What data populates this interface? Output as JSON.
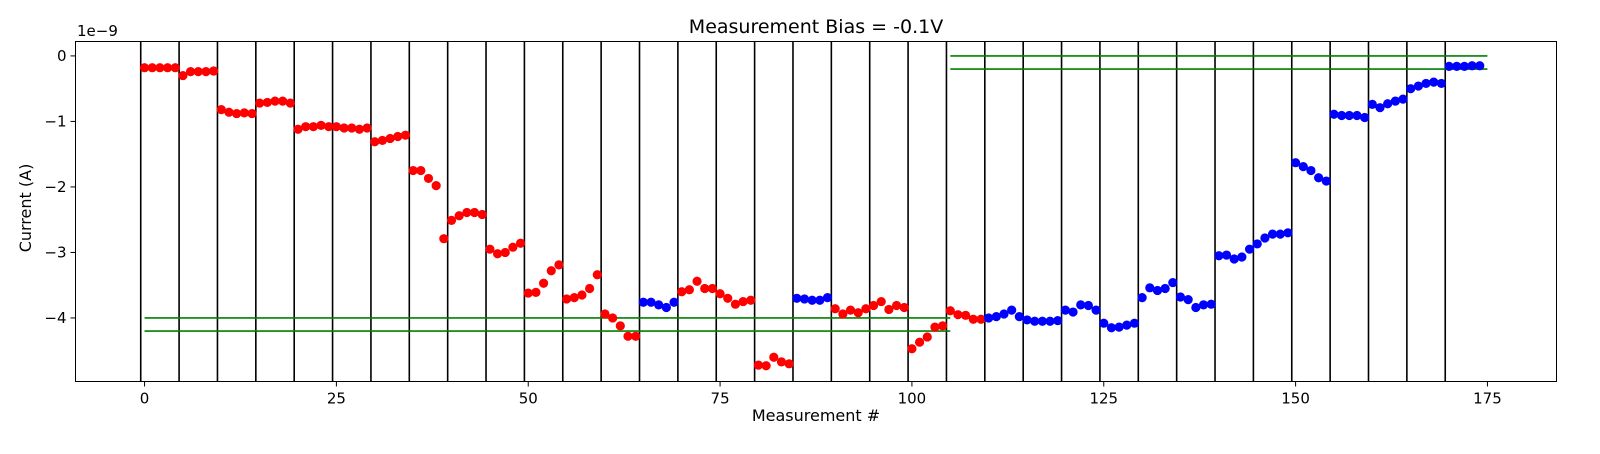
{
  "chart_data": {
    "type": "scatter",
    "title": "Measurement Bias = -0.1V",
    "xlabel": "Measurement #",
    "ylabel": "Current (A)",
    "y_offset_label": "1e−9",
    "xlim": [
      -9,
      184
    ],
    "ylim": [
      -4.97,
      0.22
    ],
    "y_scale_factor": 1e-09,
    "grid": false,
    "x_ticks": [
      0,
      25,
      50,
      75,
      100,
      125,
      150,
      175
    ],
    "x_tick_labels": [
      "0",
      "25",
      "50",
      "75",
      "100",
      "125",
      "150",
      "175"
    ],
    "y_ticks": [
      0,
      -1,
      -2,
      -3,
      -4
    ],
    "y_tick_labels": [
      "0",
      "−1",
      "−2",
      "−3",
      "−4"
    ],
    "vertical_lines_x": [
      -0.5,
      4.5,
      9.5,
      14.5,
      19.5,
      24.5,
      29.5,
      34.5,
      39.5,
      44.5,
      49.5,
      54.5,
      59.5,
      64.5,
      69.5,
      74.5,
      79.5,
      84.5,
      89.5,
      94.5,
      99.5,
      104.5,
      109.5,
      114.5,
      119.5,
      124.5,
      129.5,
      134.5,
      139.5,
      144.5,
      149.5,
      154.5,
      159.5,
      164.5,
      169.5
    ],
    "vertical_line_color": "#000000",
    "reference_lines": [
      {
        "x": [
          105,
          175
        ],
        "y": 0.0,
        "color": "#008000"
      },
      {
        "x": [
          105,
          175
        ],
        "y": -0.2,
        "color": "#008000"
      },
      {
        "x": [
          0,
          105
        ],
        "y": -4.0,
        "color": "#008000"
      },
      {
        "x": [
          0,
          105
        ],
        "y": -4.2,
        "color": "#008000"
      }
    ],
    "series": [
      {
        "color": "#ff0000",
        "x": [
          0,
          1,
          2,
          3,
          4,
          5,
          6,
          7,
          8,
          9,
          10,
          11,
          12,
          13,
          14,
          15,
          16,
          17,
          18,
          19,
          20,
          21,
          22,
          23,
          24,
          25,
          26,
          27,
          28,
          29,
          30,
          31,
          32,
          33,
          34,
          35,
          36,
          37,
          38,
          39,
          40,
          41,
          42,
          43,
          44,
          45,
          46,
          47,
          48,
          49,
          50,
          51,
          52,
          53,
          54,
          55,
          56,
          57,
          58,
          59,
          60,
          61,
          62,
          63,
          64,
          70,
          71,
          72,
          73,
          74,
          75,
          76,
          77,
          78,
          79,
          80,
          81,
          82,
          83,
          84,
          90,
          91,
          92,
          93,
          94,
          95,
          96,
          97,
          98,
          99,
          100,
          101,
          102,
          103,
          104,
          105,
          106,
          107,
          108,
          109
        ],
        "y": [
          -0.18,
          -0.18,
          -0.18,
          -0.18,
          -0.18,
          -0.3,
          -0.24,
          -0.24,
          -0.24,
          -0.23,
          -0.82,
          -0.86,
          -0.88,
          -0.87,
          -0.88,
          -0.72,
          -0.71,
          -0.69,
          -0.69,
          -0.72,
          -1.12,
          -1.08,
          -1.08,
          -1.06,
          -1.08,
          -1.08,
          -1.1,
          -1.1,
          -1.12,
          -1.1,
          -1.31,
          -1.29,
          -1.26,
          -1.23,
          -1.21,
          -1.75,
          -1.75,
          -1.87,
          -1.98,
          -2.79,
          -2.51,
          -2.44,
          -2.39,
          -2.39,
          -2.42,
          -2.95,
          -3.02,
          -3.0,
          -2.92,
          -2.86,
          -3.62,
          -3.61,
          -3.47,
          -3.28,
          -3.19,
          -3.71,
          -3.69,
          -3.65,
          -3.55,
          -3.34,
          -3.94,
          -4.0,
          -4.12,
          -4.28,
          -4.28,
          -3.6,
          -3.57,
          -3.44,
          -3.55,
          -3.55,
          -3.63,
          -3.7,
          -3.79,
          -3.75,
          -3.73,
          -4.72,
          -4.73,
          -4.6,
          -4.67,
          -4.7,
          -3.86,
          -3.94,
          -3.88,
          -3.92,
          -3.86,
          -3.81,
          -3.75,
          -3.87,
          -3.81,
          -3.84,
          -4.47,
          -4.37,
          -4.29,
          -4.14,
          -4.12,
          -3.89,
          -3.95,
          -3.96,
          -4.02,
          -4.02
        ]
      },
      {
        "color": "#0000ff",
        "x": [
          65,
          66,
          67,
          68,
          69,
          85,
          86,
          87,
          88,
          89,
          110,
          111,
          112,
          113,
          114,
          115,
          116,
          117,
          118,
          119,
          120,
          121,
          122,
          123,
          124,
          125,
          126,
          127,
          128,
          129,
          130,
          131,
          132,
          133,
          134,
          135,
          136,
          137,
          138,
          139,
          140,
          141,
          142,
          143,
          144,
          145,
          146,
          147,
          148,
          149,
          150,
          151,
          152,
          153,
          154,
          155,
          156,
          157,
          158,
          159,
          160,
          161,
          162,
          163,
          164,
          165,
          166,
          167,
          168,
          169,
          170,
          171,
          172,
          173,
          174
        ],
        "y": [
          -3.76,
          -3.76,
          -3.8,
          -3.84,
          -3.76,
          -3.7,
          -3.71,
          -3.73,
          -3.73,
          -3.69,
          -4.0,
          -3.98,
          -3.94,
          -3.88,
          -3.98,
          -4.03,
          -4.05,
          -4.05,
          -4.05,
          -4.04,
          -3.88,
          -3.91,
          -3.8,
          -3.81,
          -3.88,
          -4.08,
          -4.15,
          -4.14,
          -4.11,
          -4.08,
          -3.69,
          -3.54,
          -3.58,
          -3.55,
          -3.46,
          -3.68,
          -3.72,
          -3.84,
          -3.8,
          -3.79,
          -3.05,
          -3.04,
          -3.1,
          -3.07,
          -2.95,
          -2.87,
          -2.78,
          -2.72,
          -2.72,
          -2.7,
          -1.63,
          -1.69,
          -1.75,
          -1.86,
          -1.91,
          -0.89,
          -0.91,
          -0.91,
          -0.91,
          -0.94,
          -0.74,
          -0.79,
          -0.73,
          -0.69,
          -0.66,
          -0.5,
          -0.46,
          -0.42,
          -0.4,
          -0.42,
          -0.16,
          -0.16,
          -0.16,
          -0.15,
          -0.15
        ]
      }
    ]
  }
}
